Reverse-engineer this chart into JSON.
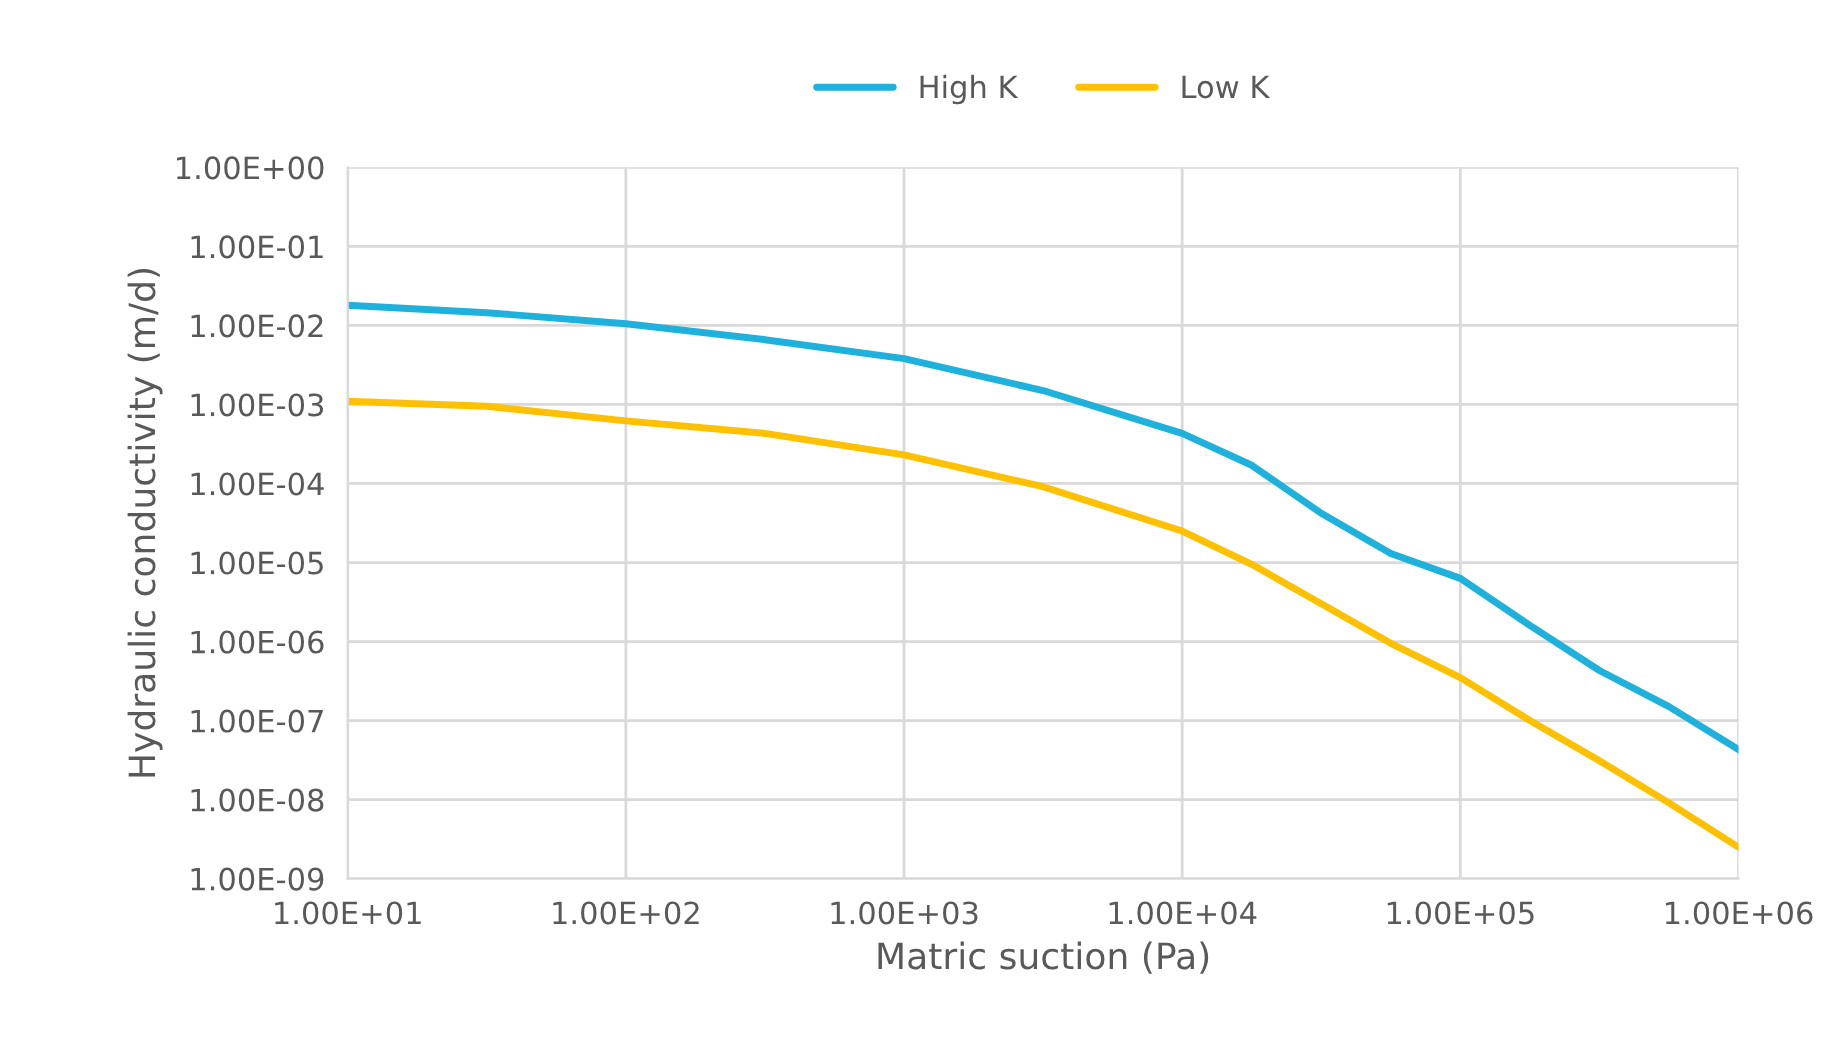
{
  "chart_data": {
    "type": "line",
    "xlabel": "Matric suction (Pa)",
    "ylabel": "Hydraulic conductivity (m/d)",
    "x": [
      10,
      31.6,
      100,
      316,
      1000,
      3162,
      10000,
      17783,
      31623,
      56234,
      100000,
      177828,
      316228,
      562341,
      1000000
    ],
    "series": [
      {
        "name": "High K",
        "color": "#1eb1dc",
        "values": [
          0.018,
          0.0145,
          0.0105,
          0.0066,
          0.0038,
          0.0015,
          0.00043,
          0.00017,
          4.2e-05,
          1.3e-05,
          6.3e-06,
          1.6e-06,
          4.3e-07,
          1.5e-07,
          4.3e-08
        ]
      },
      {
        "name": "Low K",
        "color": "#ffc000",
        "values": [
          0.0011,
          0.00095,
          0.00062,
          0.00043,
          0.00023,
          9.1e-05,
          2.5e-05,
          9.5e-06,
          3e-06,
          9.5e-07,
          3.5e-07,
          1e-07,
          3.1e-08,
          9.1e-09,
          2.5e-09
        ]
      }
    ],
    "log": "xy",
    "xlim": [
      10,
      1000000
    ],
    "ylim": [
      1e-09,
      1
    ],
    "xticks": [
      {
        "value": 10,
        "label": "1.00E+01"
      },
      {
        "value": 100,
        "label": "1.00E+02"
      },
      {
        "value": 1000,
        "label": "1.00E+03"
      },
      {
        "value": 10000,
        "label": "1.00E+04"
      },
      {
        "value": 100000,
        "label": "1.00E+05"
      },
      {
        "value": 1000000,
        "label": "1.00E+06"
      }
    ],
    "yticks": [
      {
        "value": 1e-09,
        "label": "1.00E-09"
      },
      {
        "value": 1e-08,
        "label": "1.00E-08"
      },
      {
        "value": 1e-07,
        "label": "1.00E-07"
      },
      {
        "value": 1e-06,
        "label": "1.00E-06"
      },
      {
        "value": 1e-05,
        "label": "1.00E-05"
      },
      {
        "value": 0.0001,
        "label": "1.00E-04"
      },
      {
        "value": 0.001,
        "label": "1.00E-03"
      },
      {
        "value": 0.01,
        "label": "1.00E-02"
      },
      {
        "value": 0.1,
        "label": "1.00E-01"
      },
      {
        "value": 1,
        "label": "1.00E+00"
      }
    ],
    "grid": true,
    "legend": "top",
    "marker": "none",
    "line_style": "solid"
  }
}
